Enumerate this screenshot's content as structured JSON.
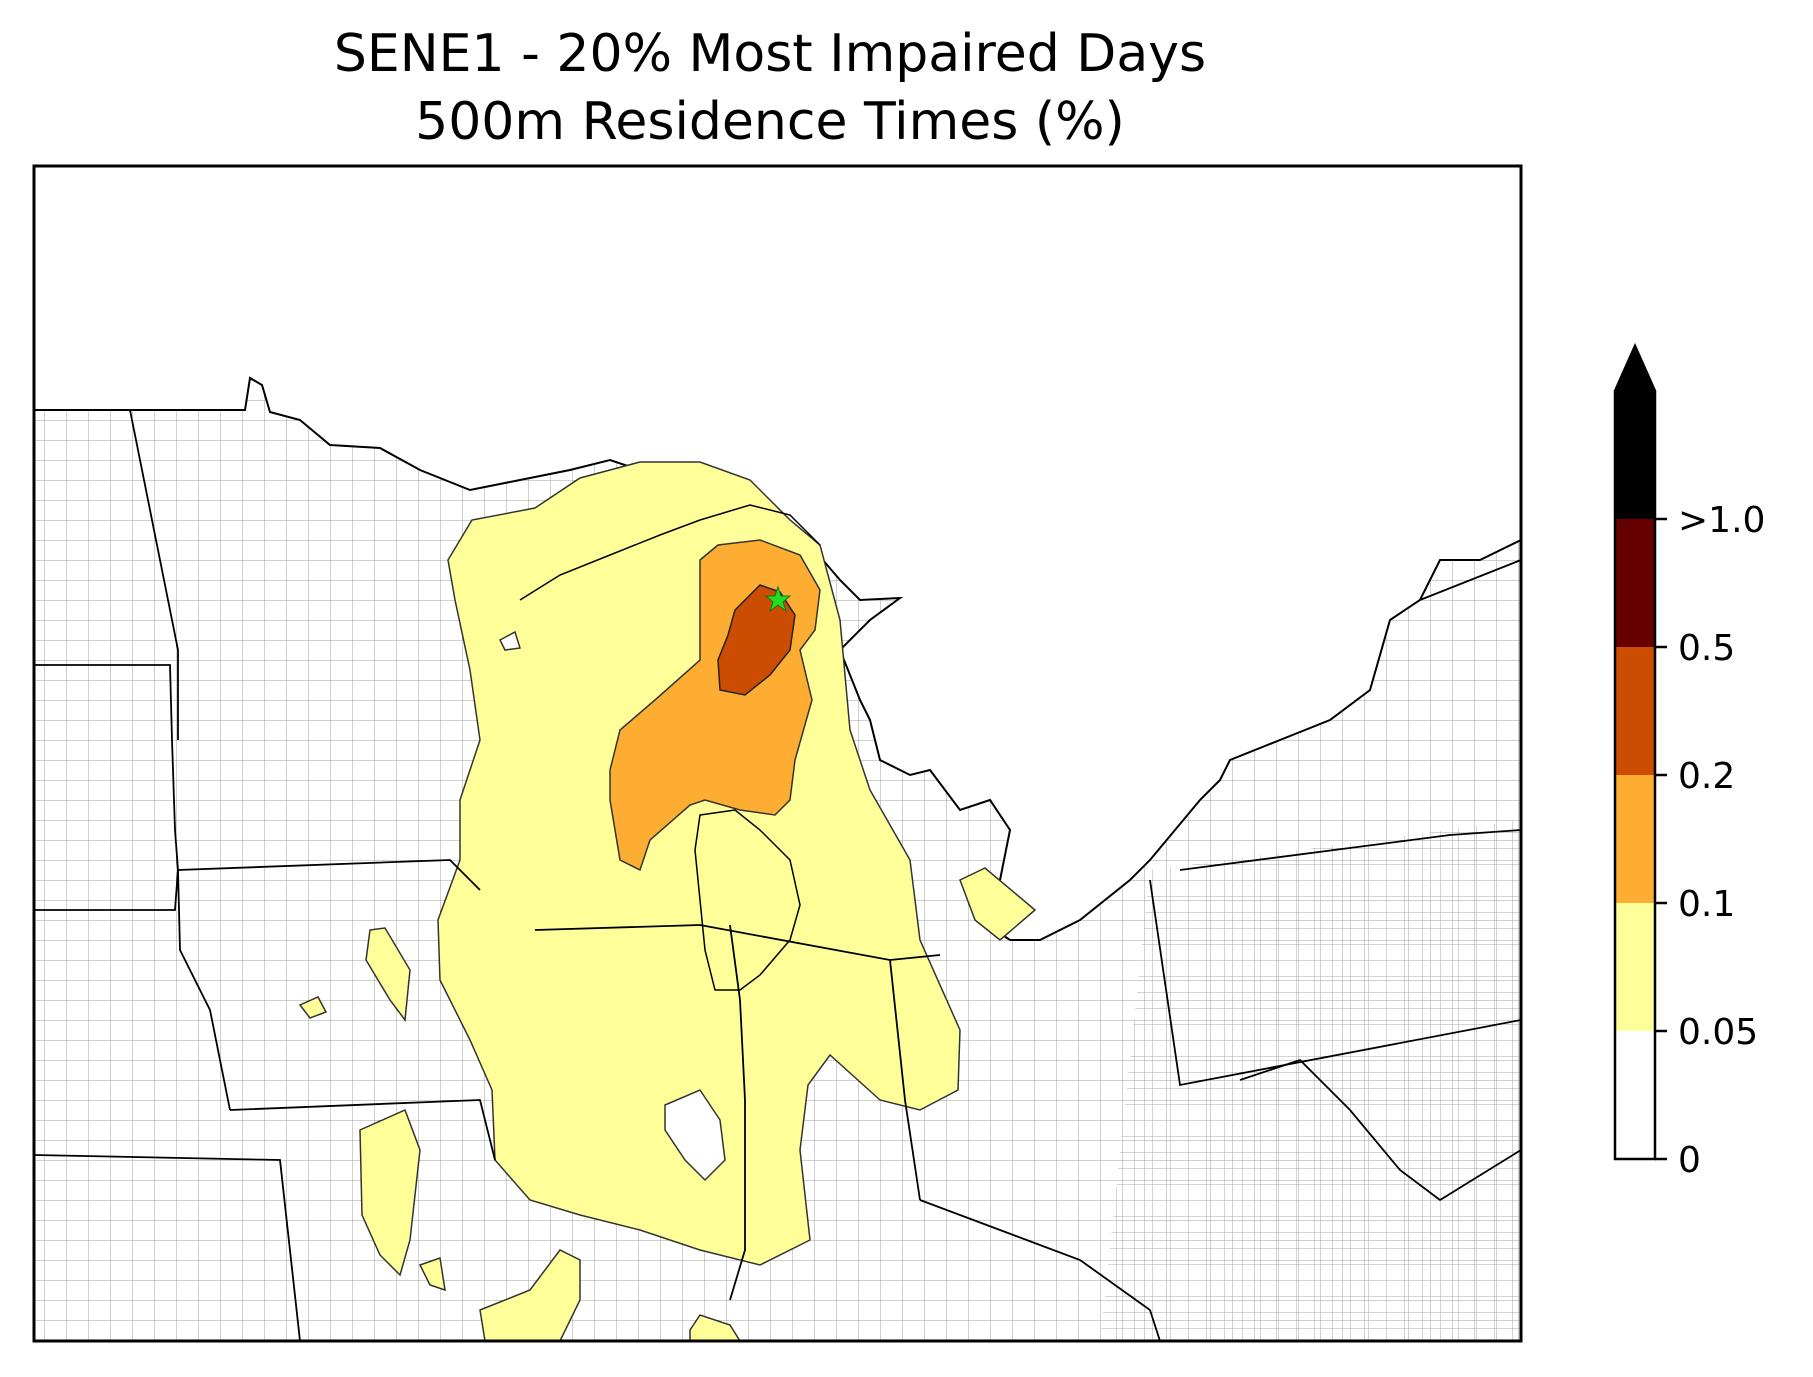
{
  "title": {
    "line1": "SENE1 - 20% Most Impaired Days",
    "line2": "500m Residence Times (%)"
  },
  "map": {
    "site_marker": "green star",
    "regions": "Upper Midwest / Great Lakes counties",
    "contour_levels": [
      "0",
      "0.05",
      "0.1",
      "0.2",
      "0.5",
      ">1.0"
    ]
  },
  "colorbar": {
    "ticks": [
      "0",
      "0.05",
      "0.1",
      "0.2",
      "0.5",
      ">1.0"
    ],
    "colors": [
      "#ffffff",
      "#ffff99",
      "#fdae32",
      "#cc4c02",
      "#660000",
      "#000000"
    ],
    "extend": "max"
  },
  "colors": {
    "band_005": "#ffff99",
    "band_01": "#fdae32",
    "band_02": "#cc4c02",
    "site": "#22dd22"
  }
}
